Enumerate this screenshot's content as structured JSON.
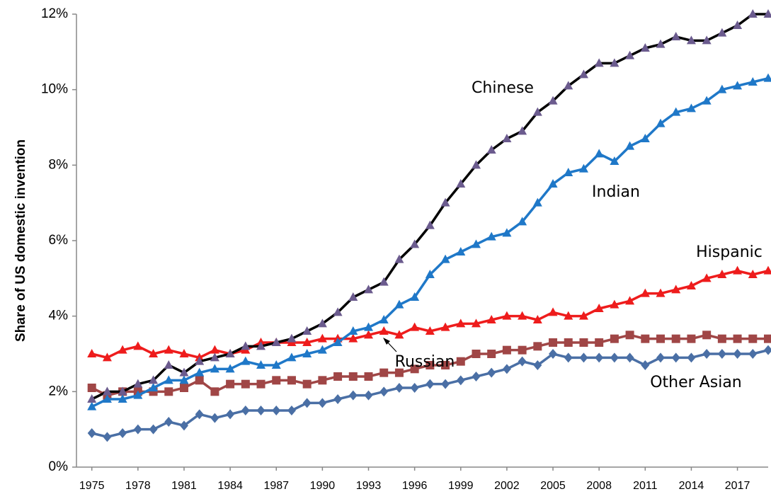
{
  "chart_data": {
    "type": "line",
    "y_label": "Share of US domestic invention",
    "x": [
      1975,
      1976,
      1977,
      1978,
      1979,
      1980,
      1981,
      1982,
      1983,
      1984,
      1985,
      1986,
      1987,
      1988,
      1989,
      1990,
      1991,
      1992,
      1993,
      1994,
      1995,
      1996,
      1997,
      1998,
      1999,
      2000,
      2001,
      2002,
      2003,
      2004,
      2005,
      2006,
      2007,
      2008,
      2009,
      2010,
      2011,
      2012,
      2013,
      2014,
      2015,
      2016,
      2017,
      2018,
      2019
    ],
    "xlim": [
      1974,
      2019
    ],
    "xticks": [
      1975,
      1978,
      1981,
      1984,
      1987,
      1990,
      1993,
      1996,
      1999,
      2002,
      2005,
      2008,
      2011,
      2014,
      2017
    ],
    "ylim": [
      0,
      12
    ],
    "yticks": [
      {
        "value": 0,
        "label": "0%"
      },
      {
        "value": 2,
        "label": "2%"
      },
      {
        "value": 4,
        "label": "4%"
      },
      {
        "value": 6,
        "label": "6%"
      },
      {
        "value": 8,
        "label": "8%"
      },
      {
        "value": 10,
        "label": "10%"
      },
      {
        "value": 12,
        "label": "12%"
      }
    ],
    "grid": false,
    "series": [
      {
        "name": "Chinese",
        "color": "#000000",
        "marker_color": "#6b5b8e",
        "marker": "triangle",
        "values": [
          1.8,
          2.0,
          2.0,
          2.2,
          2.3,
          2.7,
          2.5,
          2.8,
          2.9,
          3.0,
          3.2,
          3.2,
          3.3,
          3.4,
          3.6,
          3.8,
          4.1,
          4.5,
          4.7,
          4.9,
          5.5,
          5.9,
          6.4,
          7.0,
          7.5,
          8.0,
          8.4,
          8.7,
          8.9,
          9.4,
          9.7,
          10.1,
          10.4,
          10.7,
          10.7,
          10.9,
          11.1,
          11.2,
          11.4,
          11.3,
          11.3,
          11.5,
          11.7,
          12.0,
          12.0
        ]
      },
      {
        "name": "Indian",
        "color": "#1f78c8",
        "marker_color": "#1f78c8",
        "marker": "triangle",
        "values": [
          1.6,
          1.8,
          1.8,
          1.9,
          2.1,
          2.3,
          2.3,
          2.5,
          2.6,
          2.6,
          2.8,
          2.7,
          2.7,
          2.9,
          3.0,
          3.1,
          3.3,
          3.6,
          3.7,
          3.9,
          4.3,
          4.5,
          5.1,
          5.5,
          5.7,
          5.9,
          6.1,
          6.2,
          6.5,
          7.0,
          7.5,
          7.8,
          7.9,
          8.3,
          8.1,
          8.5,
          8.7,
          9.1,
          9.4,
          9.5,
          9.7,
          10.0,
          10.1,
          10.2,
          10.3
        ]
      },
      {
        "name": "Hispanic",
        "color": "#ee1c1c",
        "marker_color": "#ee1c1c",
        "marker": "triangle",
        "values": [
          3.0,
          2.9,
          3.1,
          3.2,
          3.0,
          3.1,
          3.0,
          2.9,
          3.1,
          3.0,
          3.1,
          3.3,
          3.3,
          3.3,
          3.3,
          3.4,
          3.4,
          3.4,
          3.5,
          3.6,
          3.5,
          3.7,
          3.6,
          3.7,
          3.8,
          3.8,
          3.9,
          4.0,
          4.0,
          3.9,
          4.1,
          4.0,
          4.0,
          4.2,
          4.3,
          4.4,
          4.6,
          4.6,
          4.7,
          4.8,
          5.0,
          5.1,
          5.2,
          5.1,
          5.2
        ]
      },
      {
        "name": "Russian",
        "color": "#a04646",
        "marker_color": "#a04646",
        "marker": "square",
        "values": [
          2.1,
          1.9,
          2.0,
          2.0,
          2.0,
          2.0,
          2.1,
          2.3,
          2.0,
          2.2,
          2.2,
          2.2,
          2.3,
          2.3,
          2.2,
          2.3,
          2.4,
          2.4,
          2.4,
          2.5,
          2.5,
          2.6,
          2.7,
          2.7,
          2.8,
          3.0,
          3.0,
          3.1,
          3.1,
          3.2,
          3.3,
          3.3,
          3.3,
          3.3,
          3.4,
          3.5,
          3.4,
          3.4,
          3.4,
          3.4,
          3.5,
          3.4,
          3.4,
          3.4,
          3.4
        ]
      },
      {
        "name": "Other Asian",
        "color": "#4a6fa5",
        "marker_color": "#4a6fa5",
        "marker": "diamond",
        "values": [
          0.9,
          0.8,
          0.9,
          1.0,
          1.0,
          1.2,
          1.1,
          1.4,
          1.3,
          1.4,
          1.5,
          1.5,
          1.5,
          1.5,
          1.7,
          1.7,
          1.8,
          1.9,
          1.9,
          2.0,
          2.1,
          2.1,
          2.2,
          2.2,
          2.3,
          2.4,
          2.5,
          2.6,
          2.8,
          2.7,
          3.0,
          2.9,
          2.9,
          2.9,
          2.9,
          2.9,
          2.7,
          2.9,
          2.9,
          2.9,
          3.0,
          3.0,
          3.0,
          3.0,
          3.1
        ]
      }
    ]
  }
}
